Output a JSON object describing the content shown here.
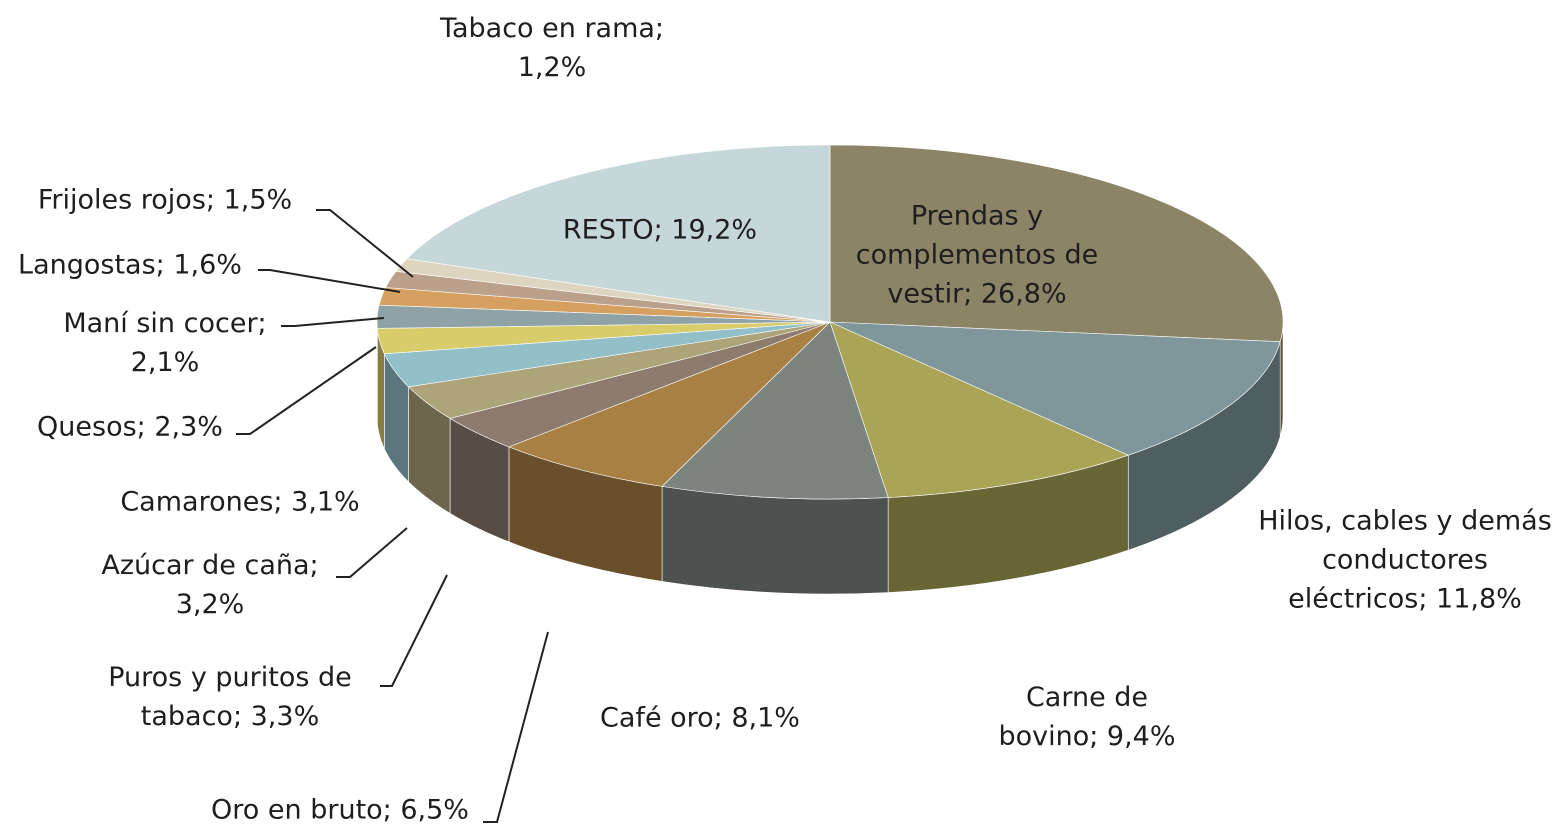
{
  "chart_data": {
    "type": "pie",
    "values": [
      26.8,
      11.8,
      9.4,
      8.1,
      6.5,
      3.3,
      3.2,
      3.1,
      2.3,
      2.1,
      1.6,
      1.5,
      1.2,
      19.2
    ],
    "value_labels": [
      "Prendas y complementos de vestir; 26,8%",
      "Hilos, cables y demás conductores eléctricos; 11,8%",
      "Carne de bovino; 9,4%",
      "Café oro; 8,1%",
      "Oro en bruto; 6,5%",
      "Puros y puritos de tabaco; 3,3%",
      "Azúcar de caña; 3,2%",
      "Camarones; 3,1%",
      "Quesos; 2,3%",
      "Maní sin cocer; 2,1%",
      "Langostas; 1,6%",
      "Frijoles rojos; 1,5%",
      "Tabaco en rama; 1,2%",
      "RESTO; 19,2%"
    ],
    "colors": [
      "#8b8466",
      "#7f979a",
      "#aaa457",
      "#7b847f",
      "#a98044",
      "#8d7c6e",
      "#aea47a",
      "#93bfc9",
      "#d9cc6a",
      "#8fa3a6",
      "#d6a060",
      "#bba08c",
      "#ddd5bf",
      "#c6d7d9"
    ]
  }
}
